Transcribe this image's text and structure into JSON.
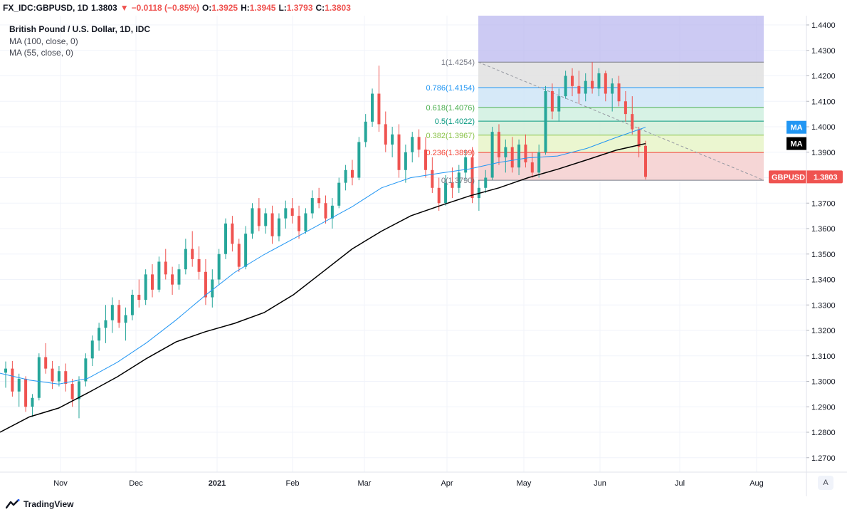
{
  "header": {
    "symbol": "FX_IDC:GBPUSD, 1D",
    "last": "1.3803",
    "change": "−0.0118 (−0.85%)",
    "o_label": "O:",
    "o_value": "1.3925",
    "h_label": "H:",
    "h_value": "1.3945",
    "l_label": "L:",
    "l_value": "1.3793",
    "c_label": "C:",
    "c_value": "1.3803"
  },
  "legend": {
    "title": "British Pound / U.S. Dollar, 1D, IDC",
    "ma1": "MA (100, close, 0)",
    "ma2": "MA (55, close, 0)"
  },
  "footer": {
    "brand": "TradingView",
    "scale_button": "A"
  },
  "colors": {
    "up": "#26a69a",
    "down": "#ef5350",
    "ma55": "#2196f3",
    "ma100": "#000000",
    "fib_levels": {
      "1": "#787b86",
      "0.786": "#2196f3",
      "0.618": "#4caf50",
      "0.5": "#089981",
      "0.382": "#8bc34a",
      "0.236": "#f44336",
      "0": "#787b86"
    }
  },
  "chart_data": {
    "type": "candlestick",
    "x_ticks": [
      "Nov",
      "Dec",
      "2021",
      "Feb",
      "Mar",
      "Apr",
      "May",
      "Jun",
      "Jul",
      "Aug"
    ],
    "y_ticks": [
      "1.4400",
      "1.4300",
      "1.4200",
      "1.4100",
      "1.4000",
      "1.3900",
      "1.3800",
      "1.3700",
      "1.3600",
      "1.3500",
      "1.3400",
      "1.3300",
      "1.3200",
      "1.3100",
      "1.3000",
      "1.2900",
      "1.2800",
      "1.2700"
    ],
    "ylim": [
      1.2665,
      1.4455
    ],
    "fib_retracement": [
      {
        "level": "1",
        "price": "1.4254"
      },
      {
        "level": "0.786",
        "price": "1.4154"
      },
      {
        "level": "0.618",
        "price": "1.4076"
      },
      {
        "level": "0.5",
        "price": "1.4022"
      },
      {
        "level": "0.382",
        "price": "1.3967"
      },
      {
        "level": "0.236",
        "price": "1.3899"
      },
      {
        "level": "0",
        "price": "1.3790"
      }
    ],
    "price_labels": {
      "ma_label": "MA",
      "ma_label2": "MA",
      "symbol": "GBPUSD",
      "last": "1.3803"
    },
    "series": [
      {
        "name": "MA (55, close, 0)",
        "values": [
          1.3032,
          1.3005,
          1.2989,
          1.3012,
          1.3075,
          1.3152,
          1.3241,
          1.3338,
          1.3428,
          1.3498,
          1.356,
          1.3623,
          1.3686,
          1.376,
          1.38,
          1.3818,
          1.3834,
          1.386,
          1.3878,
          1.3885,
          1.3915,
          1.3958,
          1.3998
        ]
      },
      {
        "name": "MA (100, close, 0)",
        "values": [
          1.28,
          1.286,
          1.2895,
          1.2955,
          1.3018,
          1.309,
          1.3155,
          1.3195,
          1.3228,
          1.327,
          1.334,
          1.343,
          1.352,
          1.359,
          1.365,
          1.369,
          1.3728,
          1.376,
          1.38,
          1.3833,
          1.387,
          1.3908,
          1.3934
        ]
      }
    ],
    "ohlc": [
      [
        1.3034,
        1.3078,
        1.2975,
        1.305
      ],
      [
        1.305,
        1.308,
        1.294,
        1.296
      ],
      [
        1.296,
        1.303,
        1.29,
        1.301
      ],
      [
        1.301,
        1.302,
        1.288,
        1.29
      ],
      [
        1.29,
        1.295,
        1.286,
        1.2935
      ],
      [
        1.2935,
        1.311,
        1.2925,
        1.3095
      ],
      [
        1.3095,
        1.315,
        1.303,
        1.305
      ],
      [
        1.305,
        1.308,
        1.297,
        1.3
      ],
      [
        1.3,
        1.306,
        1.298,
        1.304
      ],
      [
        1.304,
        1.307,
        1.296,
        1.299
      ],
      [
        1.299,
        1.301,
        1.29,
        1.293
      ],
      [
        1.293,
        1.302,
        1.2855,
        1.3
      ],
      [
        1.3,
        1.311,
        1.298,
        1.309
      ],
      [
        1.309,
        1.318,
        1.306,
        1.316
      ],
      [
        1.316,
        1.323,
        1.312,
        1.321
      ],
      [
        1.321,
        1.33,
        1.315,
        1.324
      ],
      [
        1.324,
        1.333,
        1.319,
        1.33
      ],
      [
        1.33,
        1.332,
        1.321,
        1.323
      ],
      [
        1.323,
        1.329,
        1.316,
        1.326
      ],
      [
        1.326,
        1.336,
        1.324,
        1.334
      ],
      [
        1.334,
        1.34,
        1.329,
        1.332
      ],
      [
        1.332,
        1.344,
        1.33,
        1.342
      ],
      [
        1.342,
        1.346,
        1.333,
        1.336
      ],
      [
        1.336,
        1.349,
        1.335,
        1.347
      ],
      [
        1.347,
        1.352,
        1.34,
        1.342
      ],
      [
        1.342,
        1.345,
        1.334,
        1.338
      ],
      [
        1.338,
        1.346,
        1.336,
        1.344
      ],
      [
        1.344,
        1.356,
        1.342,
        1.352
      ],
      [
        1.352,
        1.359,
        1.345,
        1.348
      ],
      [
        1.348,
        1.353,
        1.34,
        1.343
      ],
      [
        1.343,
        1.348,
        1.33,
        1.333
      ],
      [
        1.333,
        1.344,
        1.329,
        1.34
      ],
      [
        1.34,
        1.352,
        1.338,
        1.35
      ],
      [
        1.35,
        1.364,
        1.348,
        1.362
      ],
      [
        1.362,
        1.365,
        1.351,
        1.354
      ],
      [
        1.354,
        1.356,
        1.343,
        1.345
      ],
      [
        1.345,
        1.361,
        1.344,
        1.358
      ],
      [
        1.358,
        1.37,
        1.356,
        1.368
      ],
      [
        1.368,
        1.372,
        1.359,
        1.361
      ],
      [
        1.361,
        1.368,
        1.358,
        1.366
      ],
      [
        1.366,
        1.369,
        1.354,
        1.357
      ],
      [
        1.357,
        1.366,
        1.355,
        1.364
      ],
      [
        1.364,
        1.371,
        1.36,
        1.368
      ],
      [
        1.368,
        1.372,
        1.362,
        1.365
      ],
      [
        1.365,
        1.369,
        1.356,
        1.359
      ],
      [
        1.359,
        1.368,
        1.358,
        1.366
      ],
      [
        1.366,
        1.375,
        1.364,
        1.372
      ],
      [
        1.372,
        1.376,
        1.368,
        1.37
      ],
      [
        1.37,
        1.373,
        1.362,
        1.364
      ],
      [
        1.364,
        1.372,
        1.36,
        1.369
      ],
      [
        1.369,
        1.38,
        1.368,
        1.378
      ],
      [
        1.378,
        1.385,
        1.375,
        1.383
      ],
      [
        1.383,
        1.387,
        1.377,
        1.38
      ],
      [
        1.38,
        1.396,
        1.379,
        1.394
      ],
      [
        1.394,
        1.405,
        1.392,
        1.402
      ],
      [
        1.402,
        1.415,
        1.4,
        1.413
      ],
      [
        1.413,
        1.424,
        1.398,
        1.401
      ],
      [
        1.401,
        1.406,
        1.39,
        1.393
      ],
      [
        1.393,
        1.4,
        1.388,
        1.397
      ],
      [
        1.397,
        1.401,
        1.38,
        1.383
      ],
      [
        1.383,
        1.393,
        1.378,
        1.39
      ],
      [
        1.39,
        1.398,
        1.386,
        1.396
      ],
      [
        1.396,
        1.399,
        1.388,
        1.391
      ],
      [
        1.391,
        1.396,
        1.38,
        1.383
      ],
      [
        1.383,
        1.388,
        1.374,
        1.376
      ],
      [
        1.376,
        1.38,
        1.367,
        1.37
      ],
      [
        1.37,
        1.381,
        1.369,
        1.378
      ],
      [
        1.378,
        1.384,
        1.372,
        1.376
      ],
      [
        1.376,
        1.385,
        1.374,
        1.382
      ],
      [
        1.382,
        1.391,
        1.379,
        1.388
      ],
      [
        1.388,
        1.392,
        1.37,
        1.372
      ],
      [
        1.372,
        1.379,
        1.367,
        1.376
      ],
      [
        1.376,
        1.383,
        1.374,
        1.38
      ],
      [
        1.38,
        1.4,
        1.379,
        1.398
      ],
      [
        1.398,
        1.401,
        1.385,
        1.388
      ],
      [
        1.388,
        1.395,
        1.382,
        1.392
      ],
      [
        1.392,
        1.396,
        1.382,
        1.384
      ],
      [
        1.384,
        1.395,
        1.381,
        1.393
      ],
      [
        1.393,
        1.397,
        1.384,
        1.386
      ],
      [
        1.386,
        1.39,
        1.38,
        1.382
      ],
      [
        1.382,
        1.393,
        1.38,
        1.39
      ],
      [
        1.39,
        1.416,
        1.389,
        1.414
      ],
      [
        1.414,
        1.417,
        1.403,
        1.406
      ],
      [
        1.406,
        1.415,
        1.402,
        1.412
      ],
      [
        1.412,
        1.422,
        1.411,
        1.42
      ],
      [
        1.42,
        1.423,
        1.412,
        1.416
      ],
      [
        1.416,
        1.422,
        1.409,
        1.413
      ],
      [
        1.413,
        1.421,
        1.41,
        1.418
      ],
      [
        1.418,
        1.4254,
        1.413,
        1.415
      ],
      [
        1.415,
        1.423,
        1.412,
        1.421
      ],
      [
        1.421,
        1.422,
        1.41,
        1.413
      ],
      [
        1.413,
        1.419,
        1.406,
        1.417
      ],
      [
        1.417,
        1.42,
        1.408,
        1.41
      ],
      [
        1.41,
        1.414,
        1.402,
        1.405
      ],
      [
        1.405,
        1.412,
        1.397,
        1.399
      ],
      [
        1.399,
        1.4,
        1.388,
        1.3921
      ],
      [
        1.3925,
        1.3945,
        1.3793,
        1.3803
      ]
    ]
  }
}
